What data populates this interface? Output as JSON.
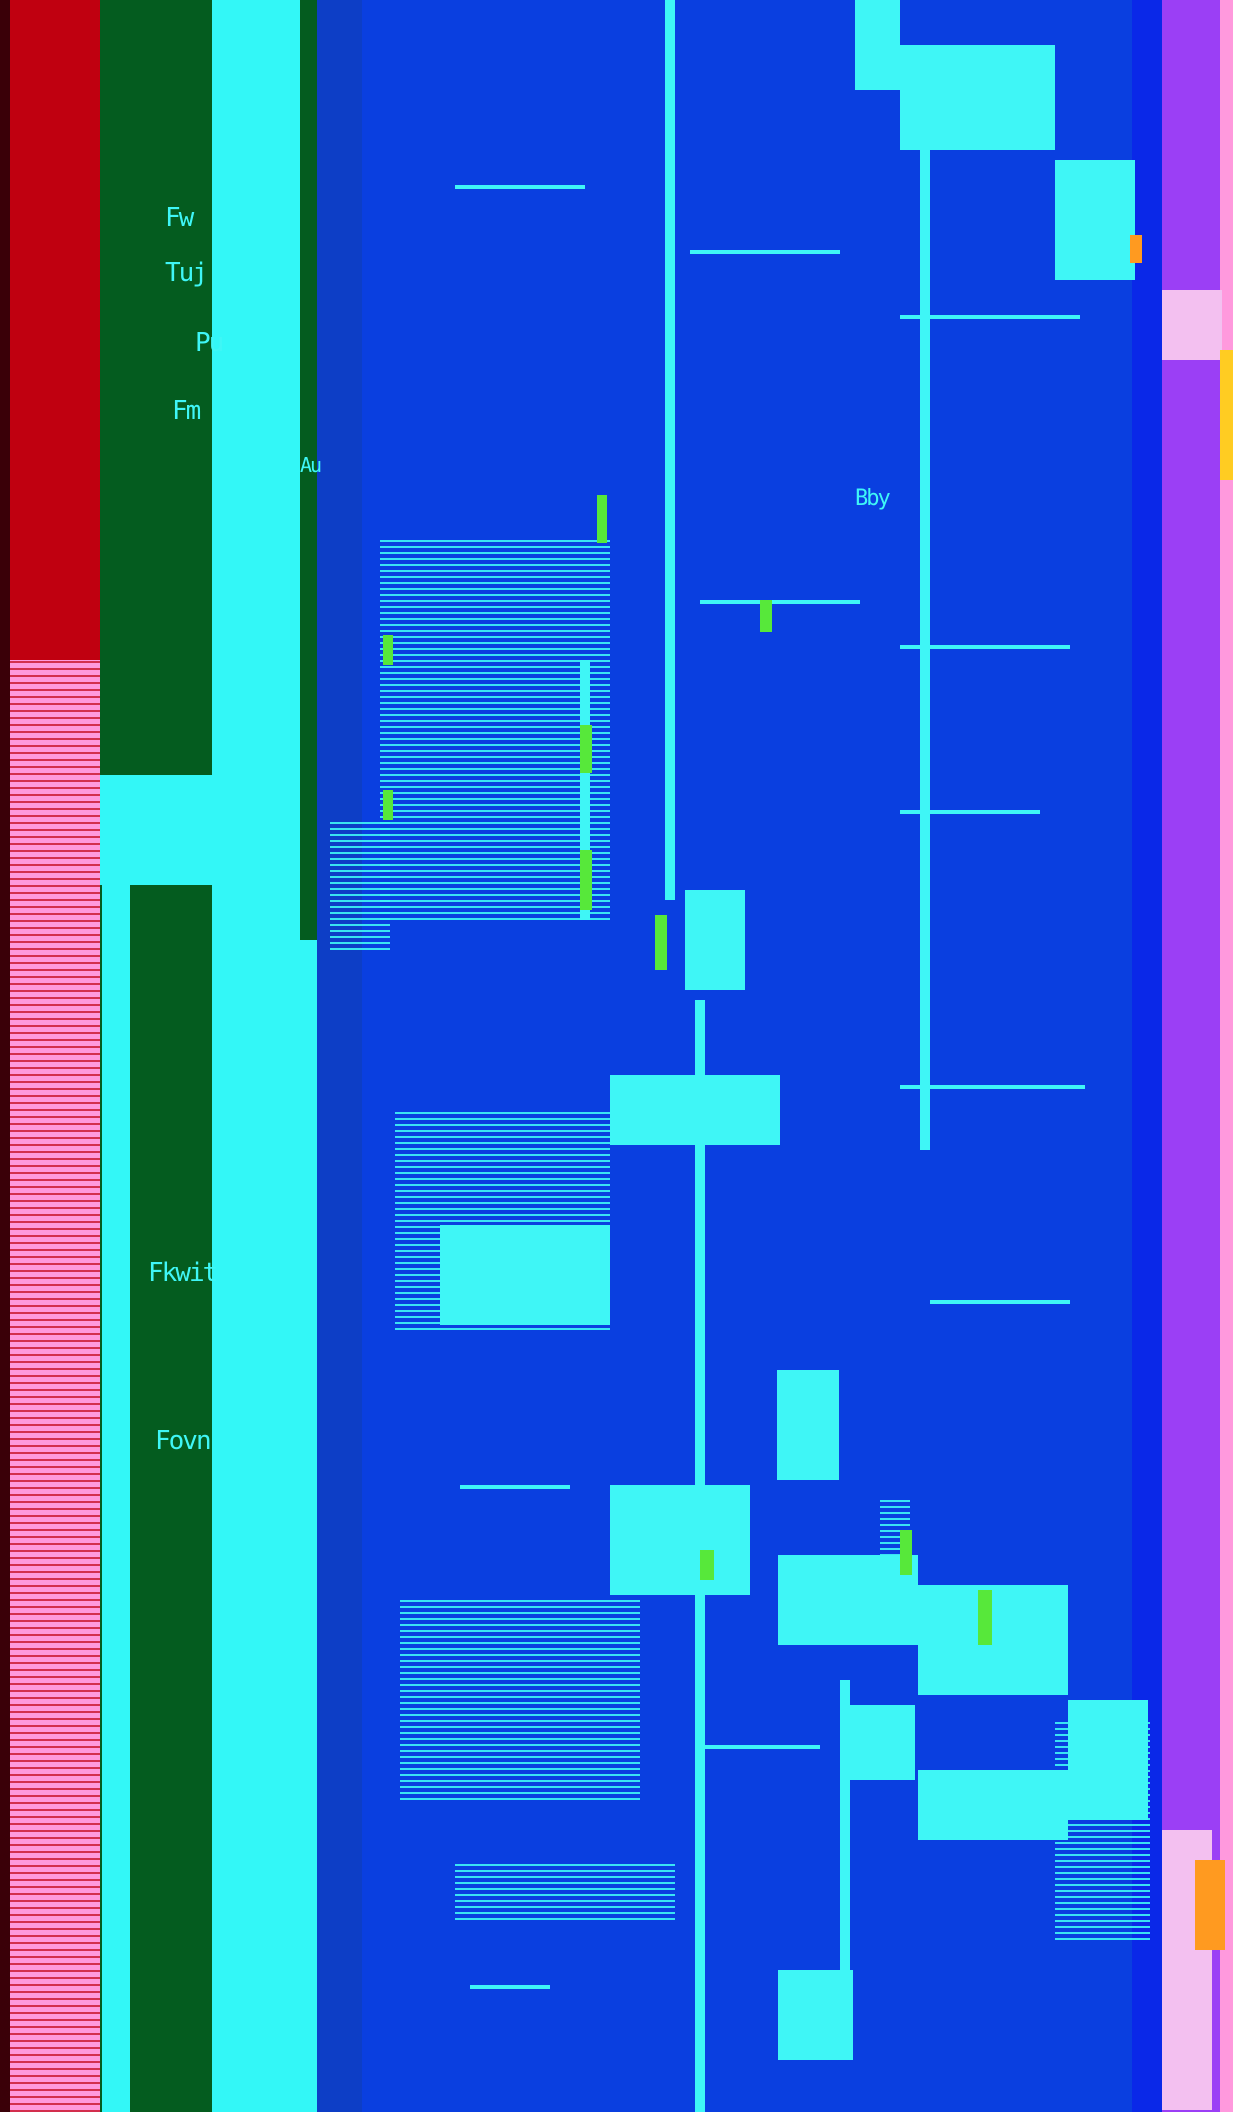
{
  "glyph_fragments": [
    "Fw",
    "Tuj",
    "Pu",
    "Fm",
    "Fkwit",
    "Fovn",
    "Au",
    "Bby"
  ],
  "colors": {
    "dark": "#3a0008",
    "red": "#c00010",
    "pink": "#ff99dd",
    "green": "#045c1f",
    "cyan": "#33f7f7",
    "blue": "#0a3fe0",
    "purple": "#9b3ff5",
    "lime": "#57e83a"
  }
}
